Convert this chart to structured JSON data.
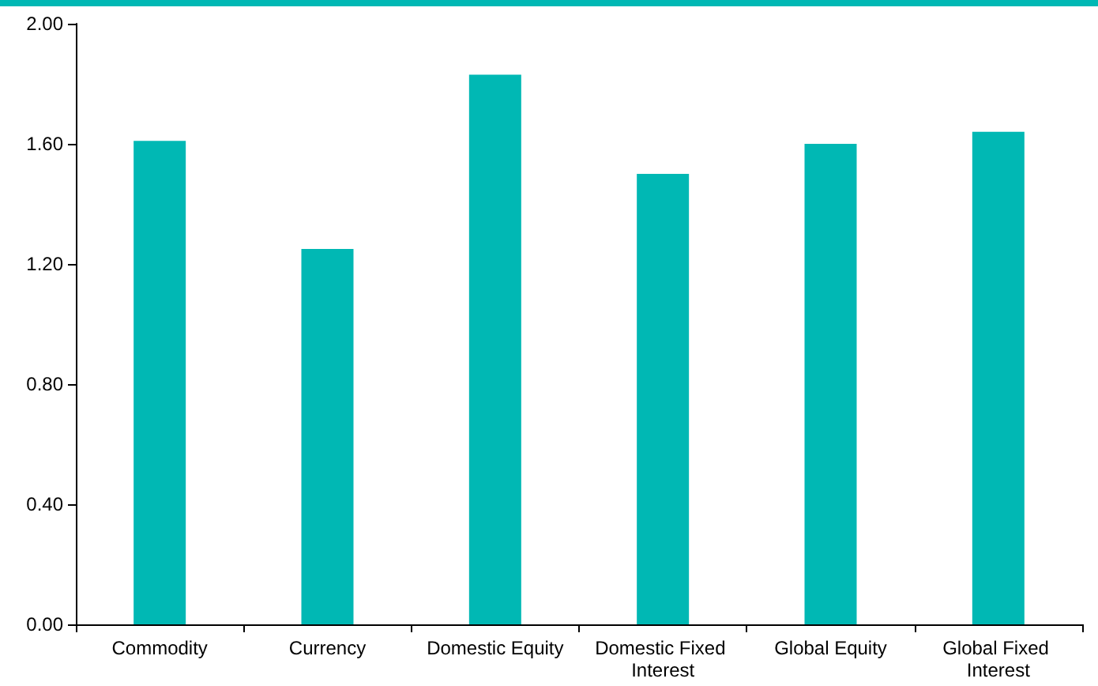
{
  "chart_data": {
    "type": "bar",
    "categories": [
      "Commodity",
      "Currency",
      "Domestic Equity",
      "Domestic Fixed Interest",
      "Global Equity",
      "Global Fixed Interest"
    ],
    "values": [
      1.61,
      1.25,
      1.83,
      1.5,
      1.6,
      1.64
    ],
    "color": "#00b8b4",
    "ylim": [
      0,
      2
    ],
    "yticks": [
      {
        "value": 0,
        "label": "0.00"
      },
      {
        "value": 0.4,
        "label": "0.40"
      },
      {
        "value": 0.8,
        "label": "0.80"
      },
      {
        "value": 1.2,
        "label": "1.20"
      },
      {
        "value": 1.6,
        "label": "1.60"
      },
      {
        "value": 2,
        "label": "2.00"
      }
    ],
    "grid": false
  }
}
